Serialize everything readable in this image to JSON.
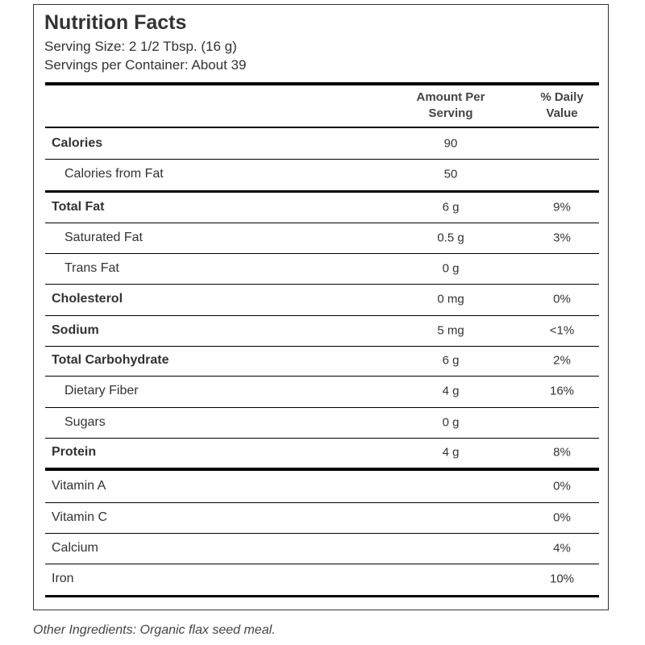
{
  "header": {
    "title": "Nutrition Facts",
    "serving_size": "Serving Size: 2 1/2 Tbsp. (16 g)",
    "servings_per_container": "Servings per Container: About 39"
  },
  "table": {
    "columns": {
      "amount": "Amount Per Serving",
      "daily_value": "% Daily Value"
    },
    "rows": [
      {
        "label": "Calories",
        "amount": "90",
        "style": "bold"
      },
      {
        "label": "Calories from Fat",
        "amount": "50",
        "style": "indent"
      },
      {
        "label": "Total Fat",
        "amount": "6 g",
        "daily_value": "9%",
        "style": "bold"
      },
      {
        "label": "Saturated Fat",
        "amount": "0.5 g",
        "daily_value": "3%",
        "style": "indent"
      },
      {
        "label": "Trans Fat",
        "amount": "0 g",
        "style": "indent"
      },
      {
        "label": "Cholesterol",
        "amount": "0 mg",
        "daily_value": "0%",
        "style": "bold"
      },
      {
        "label": "Sodium",
        "amount": "5 mg",
        "daily_value": "<1%",
        "style": "bold"
      },
      {
        "label": "Total Carbohydrate",
        "amount": "6 g",
        "daily_value": "2%",
        "style": "bold"
      },
      {
        "label": "Dietary Fiber",
        "amount": "4 g",
        "daily_value": "16%",
        "style": "indent"
      },
      {
        "label": "Sugars",
        "amount": "0 g",
        "style": "indent"
      },
      {
        "label": "Protein",
        "amount": "4 g",
        "daily_value": "8%",
        "style": "bold"
      },
      {
        "label": "Vitamin A",
        "daily_value": "0%",
        "style": "plain"
      },
      {
        "label": "Vitamin C",
        "daily_value": "0%",
        "style": "plain"
      },
      {
        "label": "Calcium",
        "daily_value": "4%",
        "style": "plain"
      },
      {
        "label": "Iron",
        "daily_value": "10%",
        "style": "plain"
      }
    ]
  },
  "footer": {
    "ingredients": "Other Ingredients: Organic flax seed meal."
  }
}
